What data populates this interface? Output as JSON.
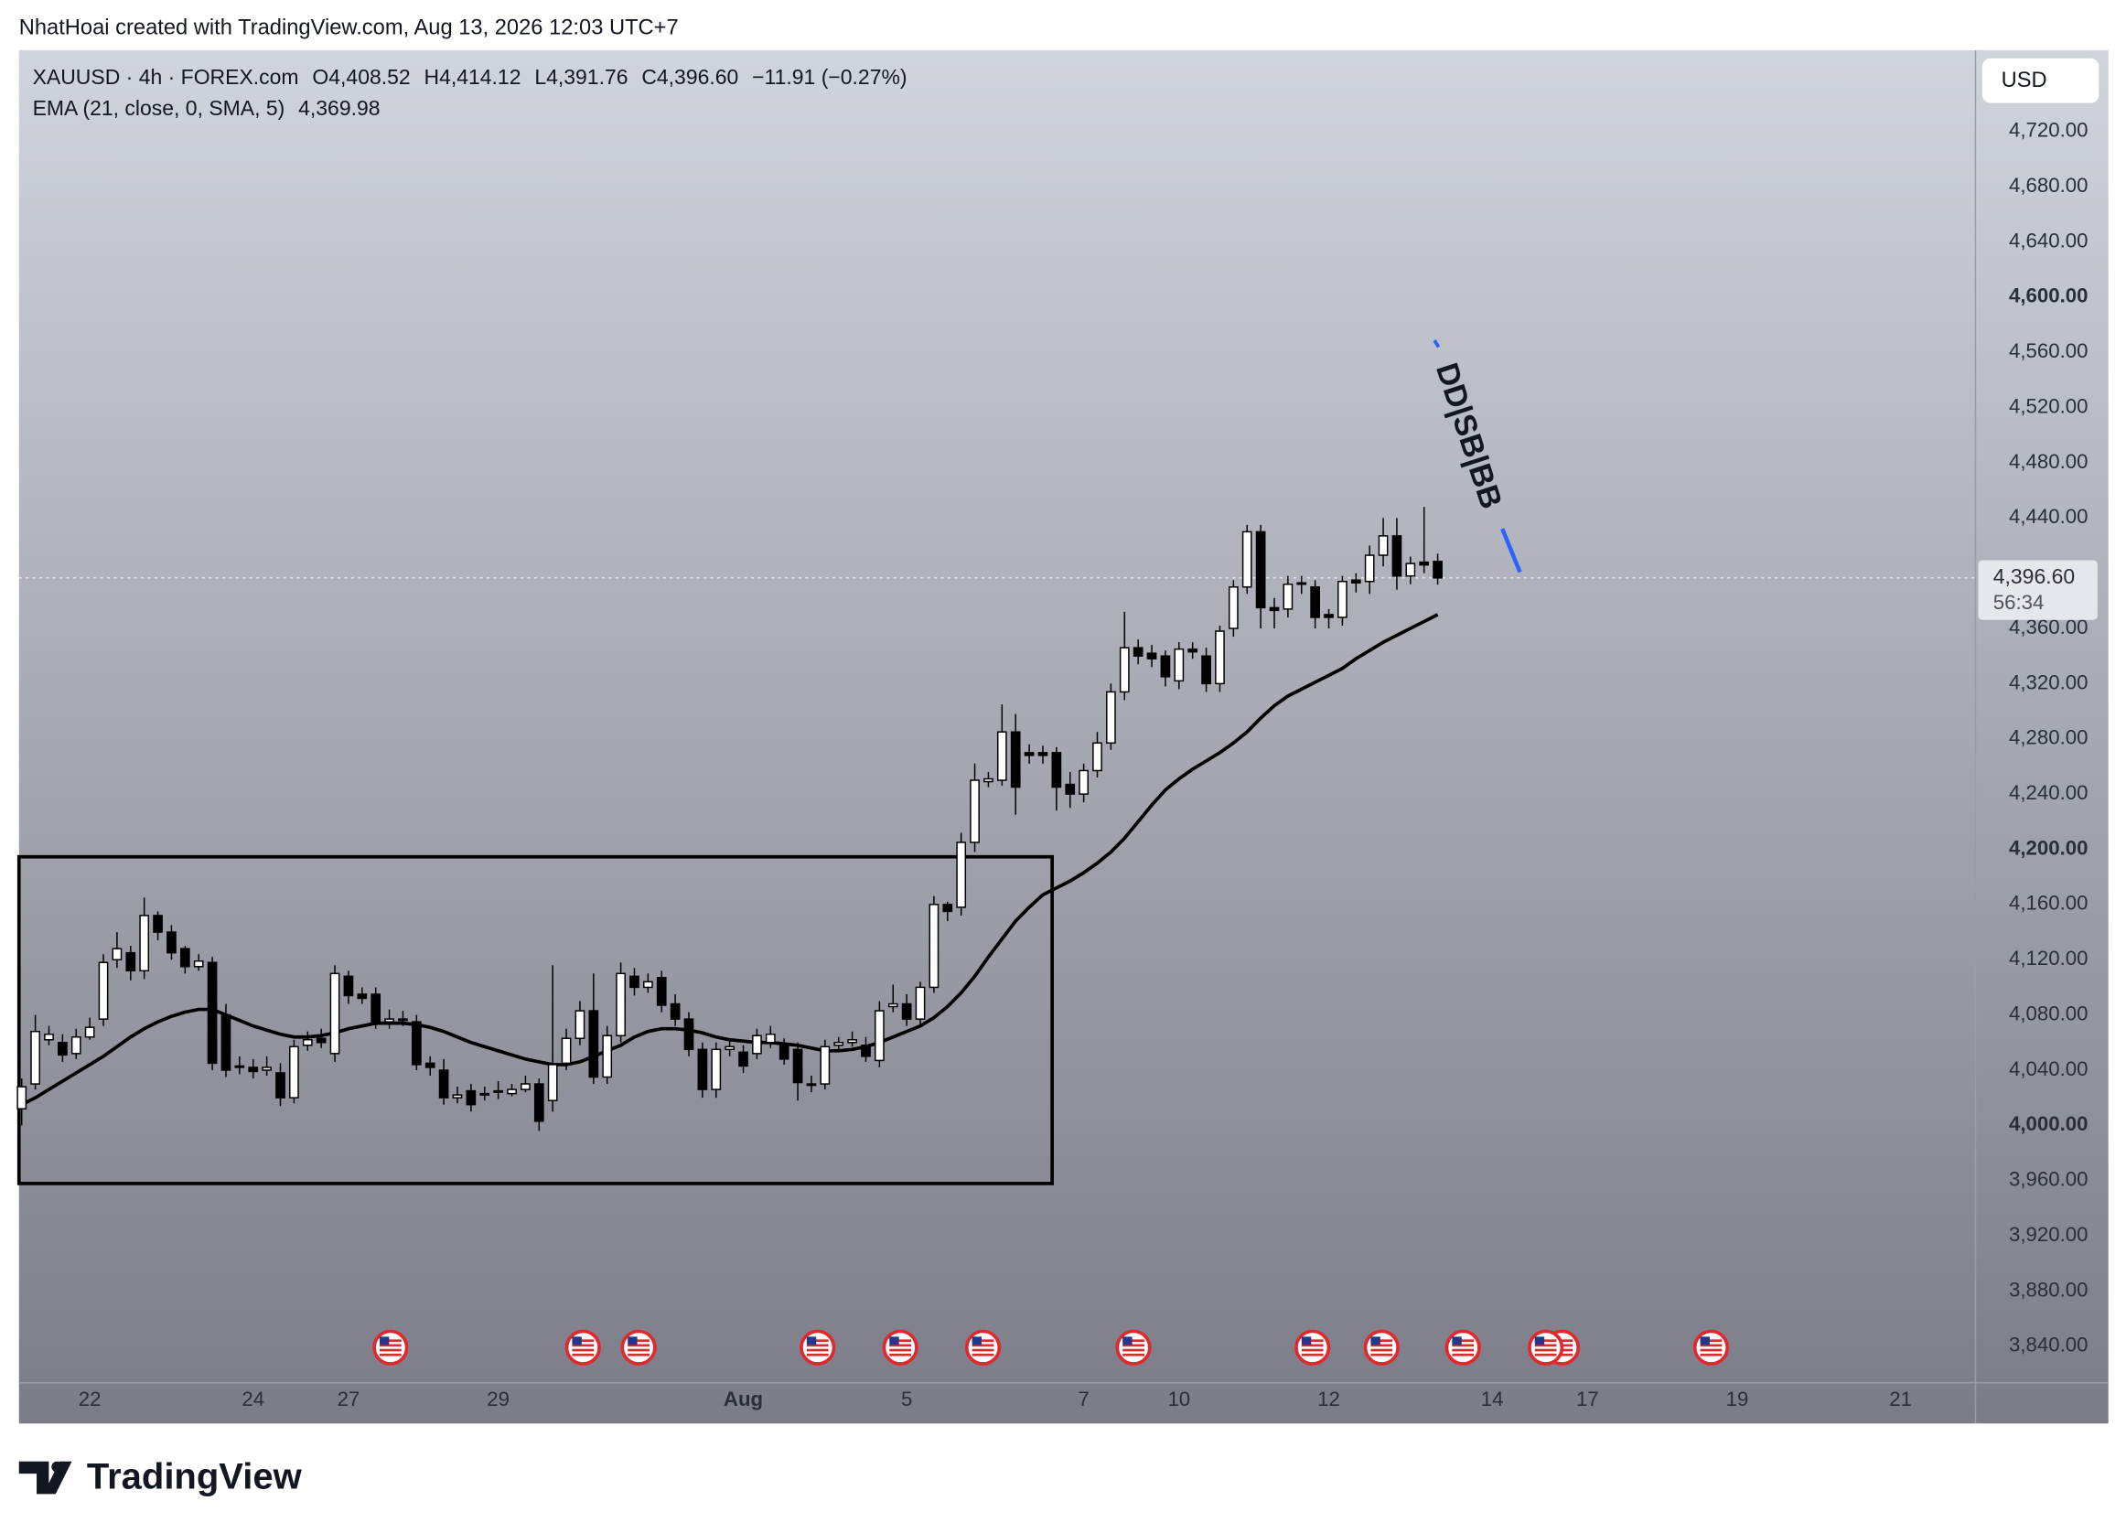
{
  "header": {
    "credit": "NhatHoai created with TradingView.com, Aug 13, 2026 12:03 UTC+7",
    "logo": "TradingView"
  },
  "chart_data": {
    "type": "candlestick",
    "legend": {
      "symbol": "XAUUSD · 4h · FOREX.com",
      "open": "O4,408.52",
      "high": "H4,414.12",
      "low": "L4,391.76",
      "close": "C4,396.60",
      "change": "−11.91 (−0.27%)",
      "indicator": "EMA (21, close, 0, SMA, 5)",
      "indicator_value": "4,369.98"
    },
    "currency": "USD",
    "last_price_label": "4,396.60",
    "countdown": "56:34",
    "annotation": "DD|SB|BB",
    "xlim": [
      -0.2,
      143.5
    ],
    "xticks": [
      {
        "value": 5,
        "label": "22"
      },
      {
        "value": 17,
        "label": "24"
      },
      {
        "value": 24,
        "label": "27"
      },
      {
        "value": 35,
        "label": "29"
      },
      {
        "value": 53,
        "label": "Aug"
      },
      {
        "value": 65,
        "label": "5"
      },
      {
        "value": 78,
        "label": "7"
      },
      {
        "value": 85,
        "label": "10"
      },
      {
        "value": 96,
        "label": "12"
      },
      {
        "value": 108,
        "label": "14"
      },
      {
        "value": 115,
        "label": "17"
      },
      {
        "value": 126,
        "label": "19"
      },
      {
        "value": 138,
        "label": "21"
      }
    ],
    "ylim": [
      3813.5,
      4778.9
    ],
    "yticks": [
      {
        "value": 3840,
        "label": "3,840.00"
      },
      {
        "value": 3880,
        "label": "3,880.00"
      },
      {
        "value": 3920,
        "label": "3,920.00"
      },
      {
        "value": 3960,
        "label": "3,960.00"
      },
      {
        "value": 4000,
        "label": "4,000.00"
      },
      {
        "value": 4040,
        "label": "4,040.00"
      },
      {
        "value": 4080,
        "label": "4,080.00"
      },
      {
        "value": 4120,
        "label": "4,120.00"
      },
      {
        "value": 4160,
        "label": "4,160.00"
      },
      {
        "value": 4200,
        "label": "4,200.00"
      },
      {
        "value": 4240,
        "label": "4,240.00"
      },
      {
        "value": 4280,
        "label": "4,280.00"
      },
      {
        "value": 4320,
        "label": "4,320.00"
      },
      {
        "value": 4360,
        "label": "4,360.00"
      },
      {
        "value": 4440,
        "label": "4,440.00"
      },
      {
        "value": 4480,
        "label": "4,480.00"
      },
      {
        "value": 4520,
        "label": "4,520.00"
      },
      {
        "value": 4560,
        "label": "4,560.00"
      },
      {
        "value": 4600,
        "label": "4,600.00"
      },
      {
        "value": 4640,
        "label": "4,640.00"
      },
      {
        "value": 4680,
        "label": "4,680.00"
      },
      {
        "value": 4720,
        "label": "4,720.00"
      }
    ],
    "x": [
      0,
      1,
      2,
      3,
      4,
      5,
      6,
      7,
      8,
      9,
      10,
      11,
      12,
      13,
      14,
      15,
      16,
      17,
      18,
      19,
      20,
      21,
      22,
      23,
      24,
      25,
      26,
      27,
      28,
      29,
      30,
      31,
      32,
      33,
      34,
      35,
      36,
      37,
      38,
      39,
      40,
      41,
      42,
      43,
      44,
      45,
      46,
      47,
      48,
      49,
      50,
      51,
      52,
      53,
      54,
      55,
      56,
      57,
      58,
      59,
      60,
      61,
      62,
      63,
      64,
      65,
      66,
      67,
      68,
      69,
      70,
      71,
      72,
      73,
      74,
      75,
      76,
      77,
      78,
      79,
      80,
      81,
      82,
      83,
      84,
      85,
      86,
      87,
      88,
      89,
      90,
      91,
      92,
      93,
      94,
      95,
      96,
      97,
      98,
      99,
      100,
      101,
      102,
      103,
      104
    ],
    "open": [
      4012,
      4030,
      4062,
      4060,
      4052,
      4064,
      4077,
      4120,
      4125,
      4112,
      4152,
      4140,
      4128,
      4115,
      4118,
      4080,
      4042,
      4042,
      4040,
      4038,
      4020,
      4058,
      4063,
      4052,
      4108,
      4095,
      4095,
      4075,
      4076,
      4075,
      4045,
      4040,
      4020,
      4025,
      4022,
      4024,
      4023,
      4026,
      4030,
      4018,
      4045,
      4063,
      4083,
      4035,
      4065,
      4108,
      4100,
      4107,
      4088,
      4077,
      4055,
      4026,
      4055,
      4053,
      4052,
      4060,
      4058,
      4055,
      4029,
      4030,
      4058,
      4060,
      4058,
      4047,
      4086,
      4088,
      4077,
      4100,
      4160,
      4158,
      4205,
      4249,
      4250,
      4285,
      4270,
      4270,
      4270,
      4247,
      4240,
      4257,
      4277,
      4314,
      4346,
      4342,
      4340,
      4322,
      4345,
      4340,
      4320,
      4360,
      4390,
      4430,
      4375,
      4374,
      4392,
      4390,
      4370,
      4368,
      4395,
      4394,
      4413,
      4427,
      4398,
      4408,
      4408.52
    ],
    "high": [
      4034,
      4080,
      4072,
      4066,
      4070,
      4078,
      4124,
      4140,
      4130,
      4165,
      4155,
      4145,
      4130,
      4124,
      4122,
      4088,
      4050,
      4048,
      4050,
      4045,
      4062,
      4068,
      4070,
      4116,
      4112,
      4100,
      4100,
      4084,
      4083,
      4080,
      4050,
      4048,
      4028,
      4030,
      4028,
      4032,
      4030,
      4036,
      4034,
      4116,
      4070,
      4090,
      4110,
      4072,
      4118,
      4114,
      4110,
      4112,
      4095,
      4082,
      4060,
      4060,
      4063,
      4058,
      4070,
      4072,
      4063,
      4060,
      4036,
      4062,
      4064,
      4068,
      4064,
      4090,
      4102,
      4095,
      4104,
      4166,
      4162,
      4212,
      4262,
      4256,
      4305,
      4298,
      4276,
      4275,
      4274,
      4256,
      4262,
      4285,
      4320,
      4372,
      4352,
      4348,
      4344,
      4350,
      4350,
      4346,
      4362,
      4395,
      4435,
      4435,
      4382,
      4398,
      4398,
      4395,
      4374,
      4398,
      4400,
      4420,
      4440,
      4440,
      4412,
      4448,
      4414.12
    ],
    "low": [
      4000,
      4026,
      4058,
      4046,
      4048,
      4062,
      4072,
      4114,
      4105,
      4106,
      4134,
      4120,
      4110,
      4112,
      4040,
      4035,
      4037,
      4034,
      4036,
      4014,
      4016,
      4054,
      4056,
      4046,
      4088,
      4088,
      4070,
      4070,
      4072,
      4040,
      4036,
      4015,
      4016,
      4010,
      4018,
      4019,
      4021,
      4024,
      3996,
      4010,
      4040,
      4058,
      4030,
      4030,
      4060,
      4094,
      4096,
      4082,
      4072,
      4050,
      4020,
      4020,
      4050,
      4038,
      4048,
      4056,
      4044,
      4018,
      4024,
      4026,
      4054,
      4057,
      4046,
      4042,
      4082,
      4072,
      4072,
      4096,
      4148,
      4152,
      4198,
      4245,
      4246,
      4225,
      4262,
      4262,
      4228,
      4230,
      4234,
      4252,
      4272,
      4308,
      4334,
      4332,
      4318,
      4316,
      4338,
      4314,
      4314,
      4354,
      4385,
      4360,
      4360,
      4368,
      4385,
      4360,
      4360,
      4362,
      4386,
      4385,
      4405,
      4388,
      4392,
      4400,
      4391.76
    ],
    "close": [
      4028,
      4068,
      4066,
      4051,
      4064,
      4071,
      4118,
      4128,
      4112,
      4152,
      4140,
      4125,
      4115,
      4119,
      4045,
      4040,
      4043,
      4039,
      4042,
      4020,
      4057,
      4062,
      4060,
      4110,
      4094,
      4092,
      4075,
      4077,
      4077,
      4044,
      4042,
      4020,
      4022,
      4015,
      4023,
      4025,
      4026,
      4030,
      4003,
      4044,
      4063,
      4083,
      4035,
      4065,
      4110,
      4100,
      4104,
      4087,
      4077,
      4055,
      4026,
      4055,
      4057,
      4043,
      4065,
      4066,
      4048,
      4031,
      4030,
      4057,
      4060,
      4062,
      4050,
      4083,
      4088,
      4077,
      4100,
      4160,
      4155,
      4205,
      4250,
      4251,
      4285,
      4245,
      4268,
      4268,
      4245,
      4240,
      4257,
      4277,
      4314,
      4346,
      4340,
      4338,
      4325,
      4345,
      4343,
      4320,
      4358,
      4390,
      4430,
      4375,
      4373,
      4392,
      4393,
      4368,
      4368,
      4394,
      4393,
      4413,
      4427,
      4398,
      4407,
      4406,
      4396.6
    ],
    "ema": [
      4015,
      4020,
      4026,
      4032,
      4038,
      4044,
      4050,
      4057,
      4064,
      4070,
      4075,
      4079,
      4082,
      4084,
      4084,
      4080,
      4076,
      4072,
      4069,
      4066,
      4064,
      4064,
      4065,
      4067,
      4070,
      4072,
      4074,
      4074,
      4074,
      4073,
      4071,
      4068,
      4064,
      4060,
      4057,
      4054,
      4051,
      4048,
      4046,
      4044,
      4044,
      4046,
      4050,
      4054,
      4058,
      4064,
      4068,
      4070,
      4070,
      4069,
      4067,
      4064,
      4062,
      4061,
      4060,
      4060,
      4059,
      4058,
      4056,
      4054,
      4054,
      4055,
      4057,
      4060,
      4064,
      4068,
      4072,
      4078,
      4086,
      4096,
      4108,
      4122,
      4135,
      4148,
      4158,
      4167,
      4172,
      4177,
      4183,
      4190,
      4198,
      4208,
      4220,
      4232,
      4243,
      4251,
      4258,
      4264,
      4270,
      4277,
      4285,
      4295,
      4304,
      4311,
      4316,
      4321,
      4326,
      4331,
      4338,
      4344,
      4350,
      4355,
      4360,
      4365,
      4369.98
    ],
    "last_price": 4396.6,
    "up_color": "#ffffff",
    "down_color": "#000000",
    "ema_color": "#000000"
  }
}
